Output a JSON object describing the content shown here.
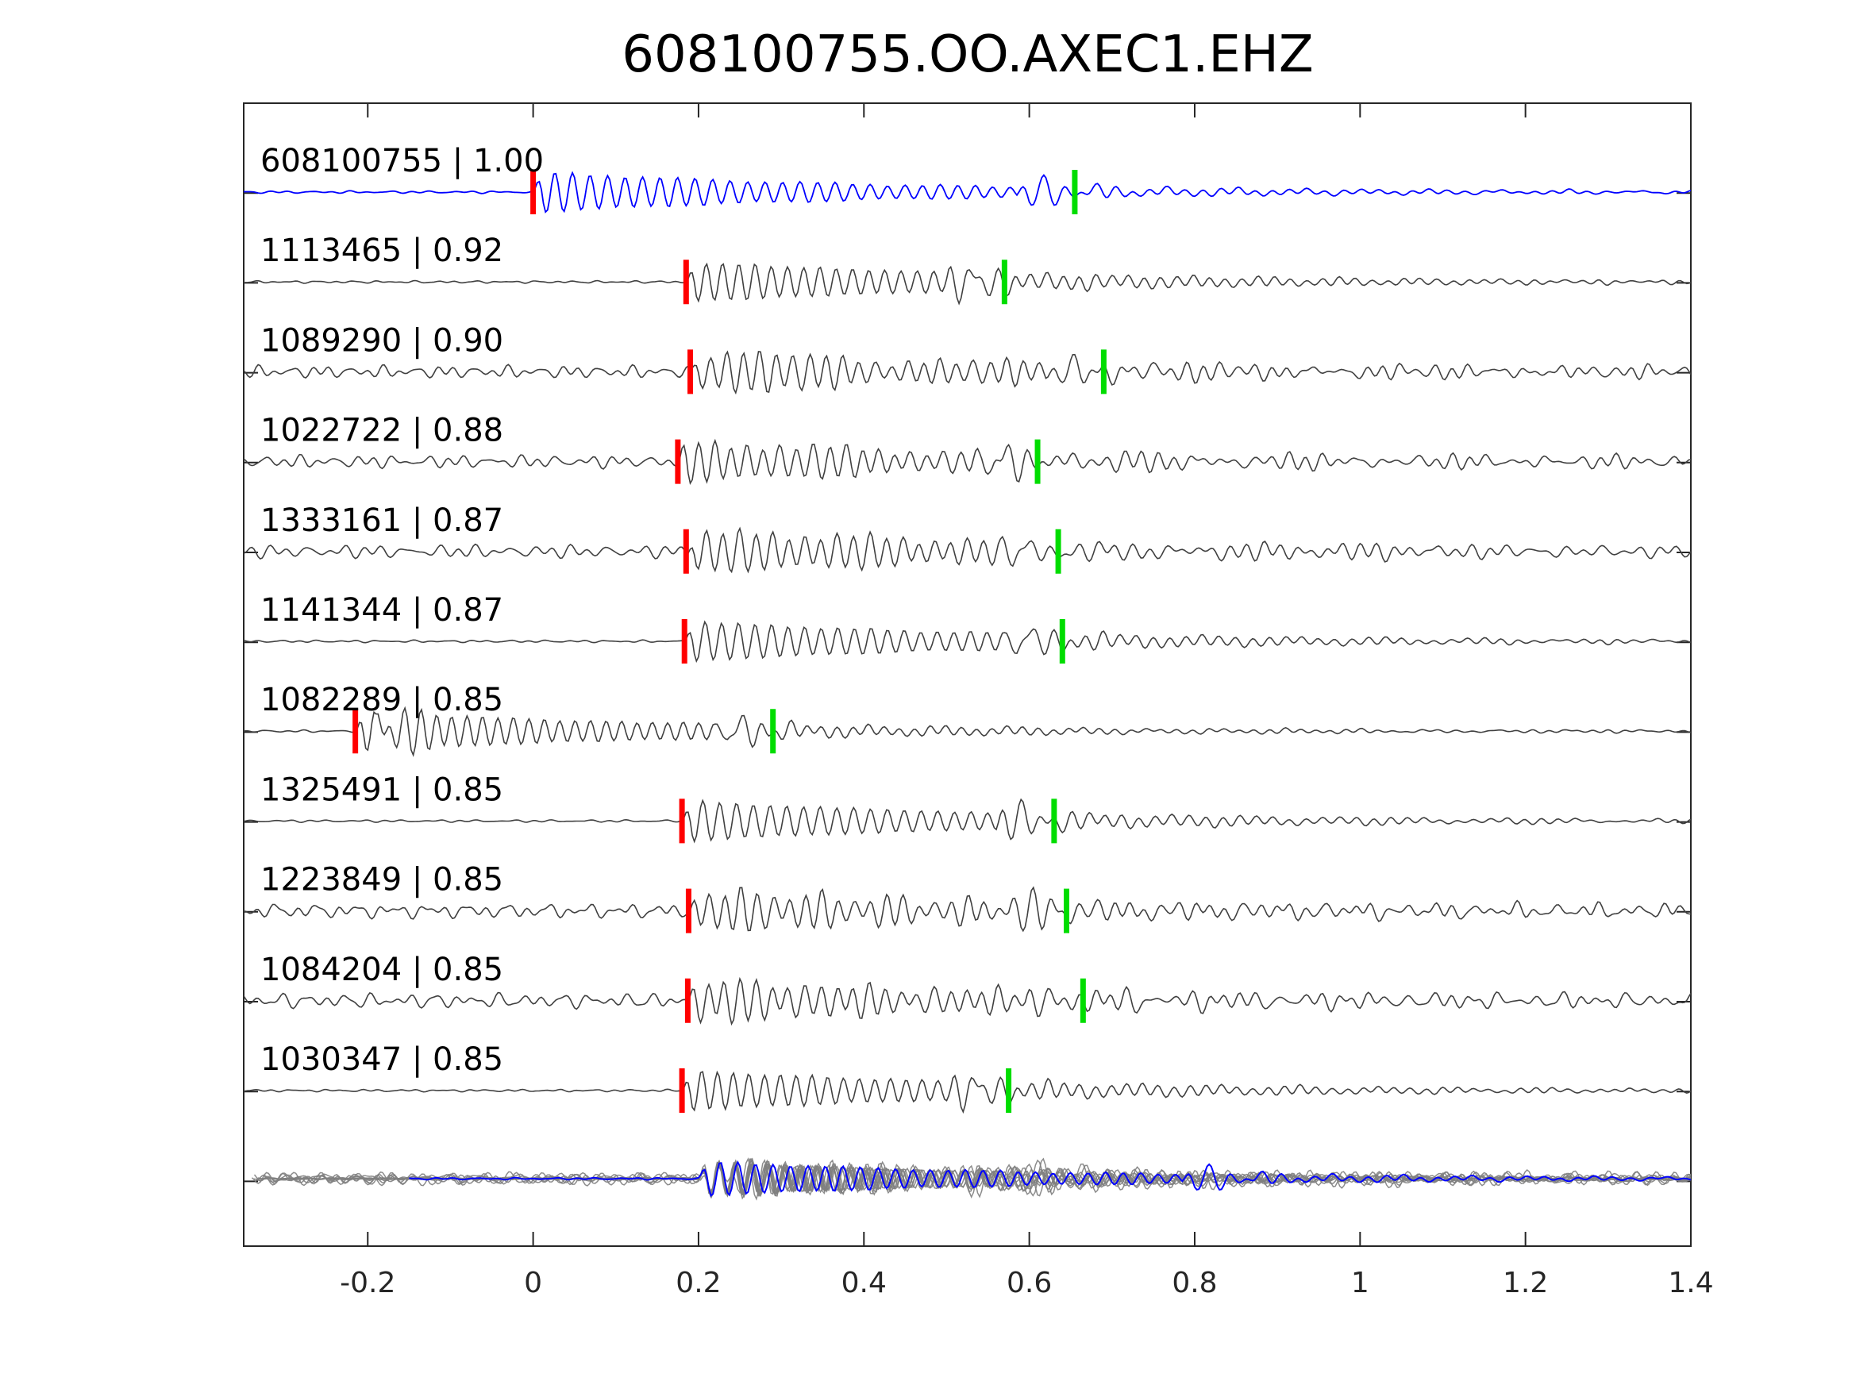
{
  "chart_data": {
    "type": "line",
    "title": "608100755.OO.AXEC1.EHZ",
    "xlabel": "",
    "ylabel": "",
    "xlim": [
      -0.35,
      1.4
    ],
    "x_ticks": [
      -0.2,
      0,
      0.2,
      0.4,
      0.6,
      0.8,
      1,
      1.2,
      1.4
    ],
    "x_tick_labels": [
      "-0.2",
      "0",
      "0.2",
      "0.4",
      "0.6",
      "0.8",
      "1",
      "1.2",
      "1.4"
    ],
    "grid": false,
    "colors": {
      "reference": "#0000ff",
      "match": "#404040",
      "stack": "#808080",
      "p_pick": "#ff0000",
      "s_pick": "#00dd00",
      "axes": "#262626"
    },
    "traces": [
      {
        "event_id": "608100755",
        "cc": "1.00",
        "label": "608100755 | 1.00",
        "p_pick": 0.0,
        "s_pick": 0.655,
        "reference": true
      },
      {
        "event_id": "1113465",
        "cc": "0.92",
        "label": "1113465 | 0.92",
        "p_pick": 0.185,
        "s_pick": 0.57
      },
      {
        "event_id": "1089290",
        "cc": "0.90",
        "label": "1089290 | 0.90",
        "p_pick": 0.19,
        "s_pick": 0.69
      },
      {
        "event_id": "1022722",
        "cc": "0.88",
        "label": "1022722 | 0.88",
        "p_pick": 0.175,
        "s_pick": 0.61
      },
      {
        "event_id": "1333161",
        "cc": "0.87",
        "label": "1333161 | 0.87",
        "p_pick": 0.185,
        "s_pick": 0.635
      },
      {
        "event_id": "1141344",
        "cc": "0.87",
        "label": "1141344 | 0.87",
        "p_pick": 0.183,
        "s_pick": 0.64
      },
      {
        "event_id": "1082289",
        "cc": "0.85",
        "label": "1082289 | 0.85",
        "p_pick": -0.215,
        "s_pick": 0.29
      },
      {
        "event_id": "1325491",
        "cc": "0.85",
        "label": "1325491 | 0.85",
        "p_pick": 0.18,
        "s_pick": 0.63
      },
      {
        "event_id": "1223849",
        "cc": "0.85",
        "label": "1223849 | 0.85",
        "p_pick": 0.188,
        "s_pick": 0.645
      },
      {
        "event_id": "1084204",
        "cc": "0.85",
        "label": "1084204 | 0.85",
        "p_pick": 0.187,
        "s_pick": 0.665
      },
      {
        "event_id": "1030347",
        "cc": "0.85",
        "label": "1030347 | 0.85",
        "p_pick": 0.18,
        "s_pick": 0.575
      }
    ]
  }
}
